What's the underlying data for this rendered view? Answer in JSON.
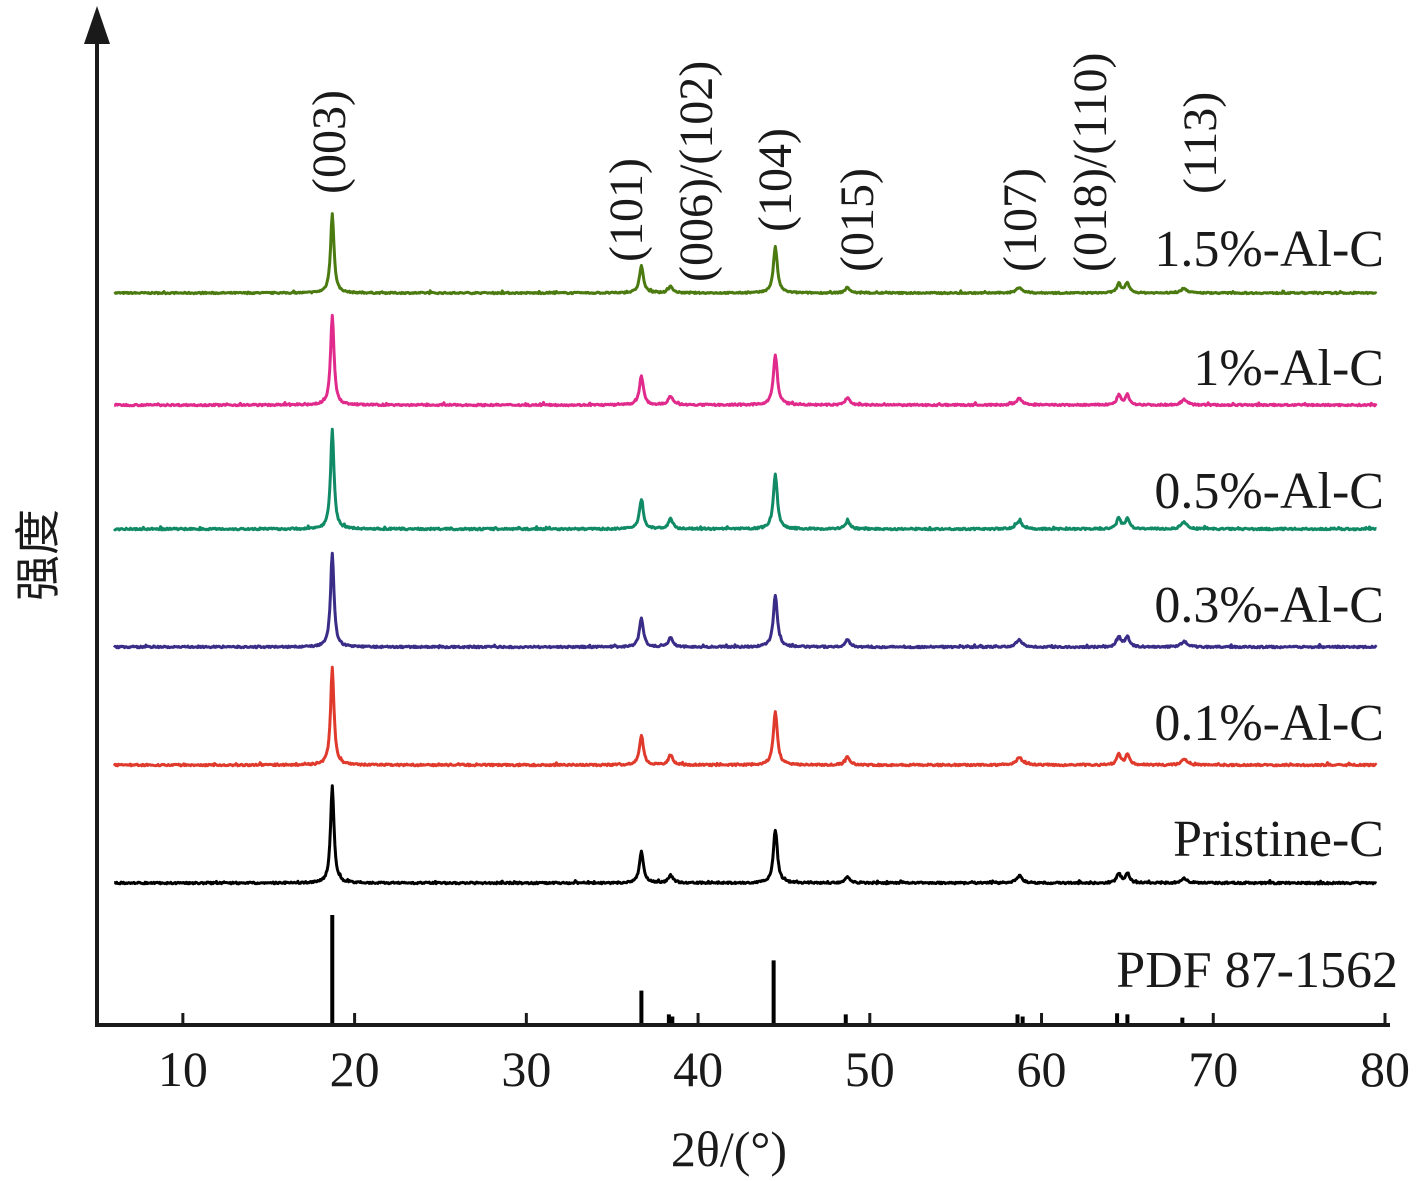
{
  "chart_data": {
    "type": "line",
    "title": "",
    "xlabel": "2θ/(°)",
    "ylabel": "强度",
    "xlim": [
      5,
      80
    ],
    "xticks": [
      10,
      20,
      30,
      40,
      50,
      60,
      70,
      80
    ],
    "y_ticks_shown": false,
    "grid": false,
    "legend": "series labels placed at right end of each trace",
    "peak_labels": [
      {
        "hkl": "(003)",
        "x": 18.7
      },
      {
        "hkl": "(101)",
        "x": 36.7
      },
      {
        "hkl": "(006)/(102)",
        "x": 38.4
      },
      {
        "hkl": "(104)",
        "x": 44.5
      },
      {
        "hkl": "(015)",
        "x": 48.7
      },
      {
        "hkl": "(107)",
        "x": 58.7
      },
      {
        "hkl": "(018)/(110)",
        "x": 64.9
      },
      {
        "hkl": "(113)",
        "x": 68.3
      }
    ],
    "series": [
      {
        "name": "1.5%-Al-C",
        "color": "#4a7a10",
        "baseline": 0.32,
        "peaks": [
          [
            18.7,
            1.0,
            0.12
          ],
          [
            36.7,
            0.34,
            0.14
          ],
          [
            38.4,
            0.08,
            0.16
          ],
          [
            44.5,
            0.58,
            0.14
          ],
          [
            48.7,
            0.07,
            0.16
          ],
          [
            58.7,
            0.07,
            0.2
          ],
          [
            64.5,
            0.12,
            0.14
          ],
          [
            65.0,
            0.12,
            0.14
          ],
          [
            68.3,
            0.06,
            0.2
          ]
        ]
      },
      {
        "name": "1%-Al-C",
        "color": "#e02b8c",
        "baseline": 0.3,
        "peaks": [
          [
            18.7,
            1.0,
            0.12
          ],
          [
            36.7,
            0.32,
            0.14
          ],
          [
            38.4,
            0.1,
            0.16
          ],
          [
            44.5,
            0.56,
            0.14
          ],
          [
            48.7,
            0.08,
            0.16
          ],
          [
            58.7,
            0.07,
            0.2
          ],
          [
            64.5,
            0.11,
            0.14
          ],
          [
            65.0,
            0.11,
            0.14
          ],
          [
            68.3,
            0.06,
            0.2
          ]
        ]
      },
      {
        "name": "0.5%-Al-C",
        "color": "#118a66",
        "baseline": 0.3,
        "peaks": [
          [
            18.7,
            1.0,
            0.12
          ],
          [
            36.7,
            0.3,
            0.14
          ],
          [
            38.4,
            0.1,
            0.16
          ],
          [
            44.5,
            0.55,
            0.14
          ],
          [
            48.7,
            0.08,
            0.16
          ],
          [
            58.7,
            0.08,
            0.2
          ],
          [
            64.5,
            0.11,
            0.14
          ],
          [
            65.0,
            0.11,
            0.14
          ],
          [
            68.3,
            0.07,
            0.2
          ]
        ]
      },
      {
        "name": "0.3%-Al-C",
        "color": "#3a2d88",
        "baseline": 0.3,
        "peaks": [
          [
            18.7,
            1.0,
            0.12
          ],
          [
            36.7,
            0.3,
            0.14
          ],
          [
            38.4,
            0.1,
            0.16
          ],
          [
            44.5,
            0.55,
            0.14
          ],
          [
            48.7,
            0.08,
            0.16
          ],
          [
            58.7,
            0.08,
            0.2
          ],
          [
            64.5,
            0.11,
            0.14
          ],
          [
            65.0,
            0.11,
            0.14
          ],
          [
            68.3,
            0.06,
            0.2
          ]
        ]
      },
      {
        "name": "0.1%-Al-C",
        "color": "#e03a2c",
        "baseline": 0.3,
        "peaks": [
          [
            18.7,
            1.0,
            0.12
          ],
          [
            36.7,
            0.3,
            0.14
          ],
          [
            38.4,
            0.1,
            0.16
          ],
          [
            44.5,
            0.55,
            0.14
          ],
          [
            48.7,
            0.08,
            0.16
          ],
          [
            58.7,
            0.08,
            0.2
          ],
          [
            64.5,
            0.11,
            0.14
          ],
          [
            65.0,
            0.11,
            0.14
          ],
          [
            68.3,
            0.06,
            0.2
          ]
        ]
      },
      {
        "name": "Pristine-C",
        "color": "#000000",
        "baseline": 0.0,
        "peaks": [
          [
            18.7,
            1.0,
            0.12
          ],
          [
            36.7,
            0.32,
            0.14
          ],
          [
            38.4,
            0.08,
            0.16
          ],
          [
            44.5,
            0.55,
            0.14
          ],
          [
            48.7,
            0.07,
            0.16
          ],
          [
            58.7,
            0.07,
            0.2
          ],
          [
            64.5,
            0.1,
            0.14
          ],
          [
            65.0,
            0.1,
            0.14
          ],
          [
            68.3,
            0.05,
            0.2
          ]
        ]
      }
    ],
    "reference": {
      "name": "PDF 87-1562",
      "color": "#000000",
      "sticks": [
        [
          18.7,
          1.0
        ],
        [
          36.7,
          0.3
        ],
        [
          38.3,
          0.08
        ],
        [
          38.5,
          0.06
        ],
        [
          44.4,
          0.58
        ],
        [
          48.6,
          0.08
        ],
        [
          58.6,
          0.08
        ],
        [
          58.9,
          0.06
        ],
        [
          64.4,
          0.09
        ],
        [
          65.0,
          0.08
        ],
        [
          68.2,
          0.05
        ]
      ]
    }
  }
}
